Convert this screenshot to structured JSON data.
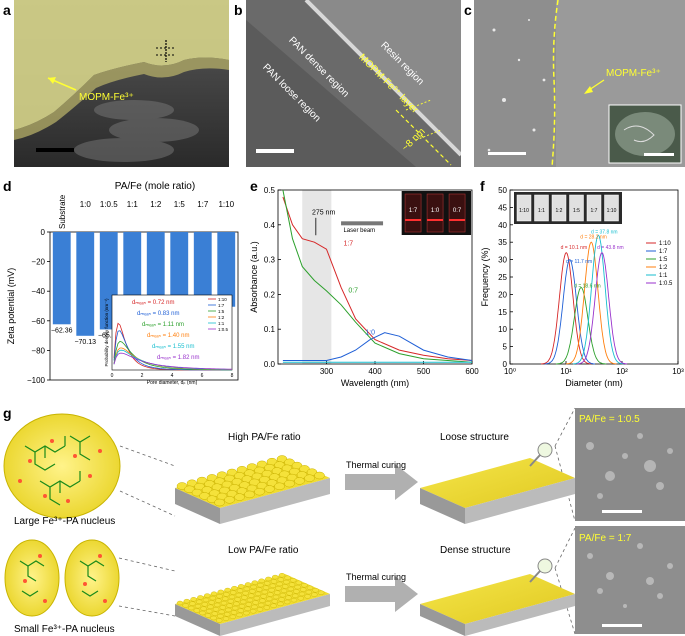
{
  "panels": {
    "a": {
      "letter": "a",
      "label": "MOPM-Fe³⁺"
    },
    "b": {
      "letter": "b",
      "resin": "Resin region",
      "dense": "PAN dense region",
      "loose": "PAN loose region",
      "layer": "MOPM-Fe³⁺ layer",
      "thickness": "~8 nm"
    },
    "c": {
      "letter": "c",
      "label": "MOPM-Fe³⁺"
    },
    "d": {
      "letter": "d"
    },
    "e": {
      "letter": "e"
    },
    "f": {
      "letter": "f"
    },
    "g": {
      "letter": "g",
      "large_nucleus": "Large Fe³⁺-PA nucleus",
      "small_nucleus": "Small Fe³⁺-PA nucleus",
      "high_ratio": "High PA/Fe ratio",
      "low_ratio": "Low PA/Fe ratio",
      "thermal_curing_1": "Thermal curing",
      "thermal_curing_2": "Thermal curing",
      "loose_structure": "Loose structure",
      "dense_structure": "Dense structure",
      "sem_top": "PA/Fe = 1:0.5",
      "sem_bottom": "PA/Fe = 1:7"
    }
  },
  "chart_data": [
    {
      "type": "bar",
      "panel": "d",
      "title": "PA/Fe (mole ratio)",
      "ylabel": "Zeta potential (mV)",
      "ylim": [
        -100,
        0
      ],
      "yticks": [
        "0",
        "−10",
        "−20",
        "−30",
        "−40",
        "−50",
        "−60",
        "−70",
        "−80",
        "−90",
        "−100"
      ],
      "categories": [
        "Substrate",
        "1:0",
        "1:0.5",
        "1:1",
        "1:2",
        "1:5",
        "1:7",
        "1:10"
      ],
      "values": [
        -62.36,
        -70.13,
        -65.84,
        -61.0,
        -58.5,
        -55.7,
        -54.12,
        -50.5
      ],
      "data_labels": [
        "−62.36",
        "−70.13",
        "−65.84",
        "",
        "",
        "",
        "−54.12",
        ""
      ],
      "bar_color": "#3a7fd5",
      "inset": {
        "type": "line",
        "xlabel": "Pore diameter, dₚ (nm)",
        "ylabel": "Probability density function (nm⁻¹)",
        "xlim": [
          0,
          8
        ],
        "xticks": [
          "0",
          "2",
          "4",
          "6",
          "8"
        ],
        "ylim": [
          0,
          1.6
        ],
        "legend": [
          "1:10",
          "1:7",
          "1:5",
          "1:2",
          "1:1",
          "1:0.5"
        ],
        "annotations": [
          {
            "text": "dₘₑₐₙ = 0.72 nm",
            "color": "#d62728"
          },
          {
            "text": "dₘₑₐₙ = 0.83 nm",
            "color": "#1f5fd6"
          },
          {
            "text": "dₘₑₐₙ = 1.11 nm",
            "color": "#2ca02c"
          },
          {
            "text": "dₘₑₐₙ = 1.40 nm",
            "color": "#ff7f0e"
          },
          {
            "text": "dₘₑₐₙ = 1.55 nm",
            "color": "#17becf"
          },
          {
            "text": "dₘₑₐₙ = 1.82 nm",
            "color": "#9932cc"
          }
        ],
        "series": [
          {
            "name": "1:10",
            "mean": 0.72,
            "color": "#d62728"
          },
          {
            "name": "1:7",
            "mean": 0.83,
            "color": "#1f5fd6"
          },
          {
            "name": "1:5",
            "mean": 1.11,
            "color": "#2ca02c"
          },
          {
            "name": "1:2",
            "mean": 1.4,
            "color": "#ff7f0e"
          },
          {
            "name": "1:1",
            "mean": 1.55,
            "color": "#17becf"
          },
          {
            "name": "1:0.5",
            "mean": 1.82,
            "color": "#9932cc"
          }
        ]
      }
    },
    {
      "type": "line",
      "panel": "e",
      "xlabel": "Wavelength (nm)",
      "ylabel": "Absorbance (a.u.)",
      "xlim": [
        200,
        600
      ],
      "ylim": [
        0,
        0.5
      ],
      "xticks": [
        "300",
        "400",
        "500",
        "600"
      ],
      "yticks": [
        "0.0",
        "0.1",
        "0.2",
        "0.3",
        "0.4",
        "0.5"
      ],
      "peak_label": "275 nm",
      "laser_label": "Laser beam",
      "vial_labels": [
        "1:7",
        "1:0",
        "0:7"
      ],
      "series": [
        {
          "name": "1:7",
          "color": "#d62728",
          "x": [
            210,
            230,
            250,
            275,
            300,
            330,
            360,
            400,
            450,
            500,
            550,
            600
          ],
          "y": [
            0.48,
            0.4,
            0.36,
            0.35,
            0.33,
            0.22,
            0.13,
            0.07,
            0.04,
            0.025,
            0.015,
            0.01
          ]
        },
        {
          "name": "0:7",
          "color": "#2ca02c",
          "x": [
            210,
            230,
            250,
            275,
            300,
            330,
            360,
            400,
            450,
            500,
            550,
            600
          ],
          "y": [
            0.5,
            0.36,
            0.28,
            0.24,
            0.21,
            0.17,
            0.12,
            0.06,
            0.03,
            0.015,
            0.01,
            0.005
          ]
        },
        {
          "name": "1:0",
          "color": "#1f5fd6",
          "x": [
            210,
            250,
            300,
            330,
            360,
            390,
            420,
            450,
            500,
            550,
            600
          ],
          "y": [
            0.01,
            0.01,
            0.01,
            0.02,
            0.04,
            0.07,
            0.09,
            0.08,
            0.04,
            0.02,
            0.01
          ]
        },
        {
          "name": "",
          "color": "#17becf",
          "x": [
            210,
            300,
            400,
            500,
            600
          ],
          "y": [
            0.005,
            0.005,
            0.005,
            0.005,
            0.005
          ]
        }
      ]
    },
    {
      "type": "line",
      "panel": "f",
      "xlabel": "Diameter (nm)",
      "ylabel": "Frequency (%)",
      "xscale": "log",
      "xlim": [
        1,
        1000
      ],
      "ylim": [
        0,
        50
      ],
      "xticks": [
        "10⁰",
        "10¹",
        "10²",
        "10³"
      ],
      "yticks": [
        "0",
        "5",
        "10",
        "15",
        "20",
        "25",
        "30",
        "35",
        "40",
        "45",
        "50"
      ],
      "legend": [
        "1:10",
        "1:7",
        "1:5",
        "1:2",
        "1:1",
        "1:0.5"
      ],
      "vial_labels": [
        "1:10",
        "1:1",
        "1:2",
        "1:5",
        "1:7",
        "1:10"
      ],
      "annotations": [
        "d = 10.1 nm",
        "d = 11.7 nm",
        "d = 18.6 nm",
        "d = 28.2 nm",
        "d = 37.8 nm",
        "d = 43.8 nm"
      ],
      "series": [
        {
          "name": "1:10",
          "color": "#d62728",
          "peak_x": 10.1,
          "peak_y": 32
        },
        {
          "name": "1:7",
          "color": "#1f5fd6",
          "peak_x": 11.7,
          "peak_y": 30
        },
        {
          "name": "1:5",
          "color": "#2ca02c",
          "peak_x": 18.6,
          "peak_y": 22
        },
        {
          "name": "1:2",
          "color": "#ff7f0e",
          "peak_x": 28.2,
          "peak_y": 35
        },
        {
          "name": "1:1",
          "color": "#17becf",
          "peak_x": 37.8,
          "peak_y": 37
        },
        {
          "name": "1:0.5",
          "color": "#9932cc",
          "peak_x": 43.8,
          "peak_y": 32
        }
      ]
    }
  ]
}
